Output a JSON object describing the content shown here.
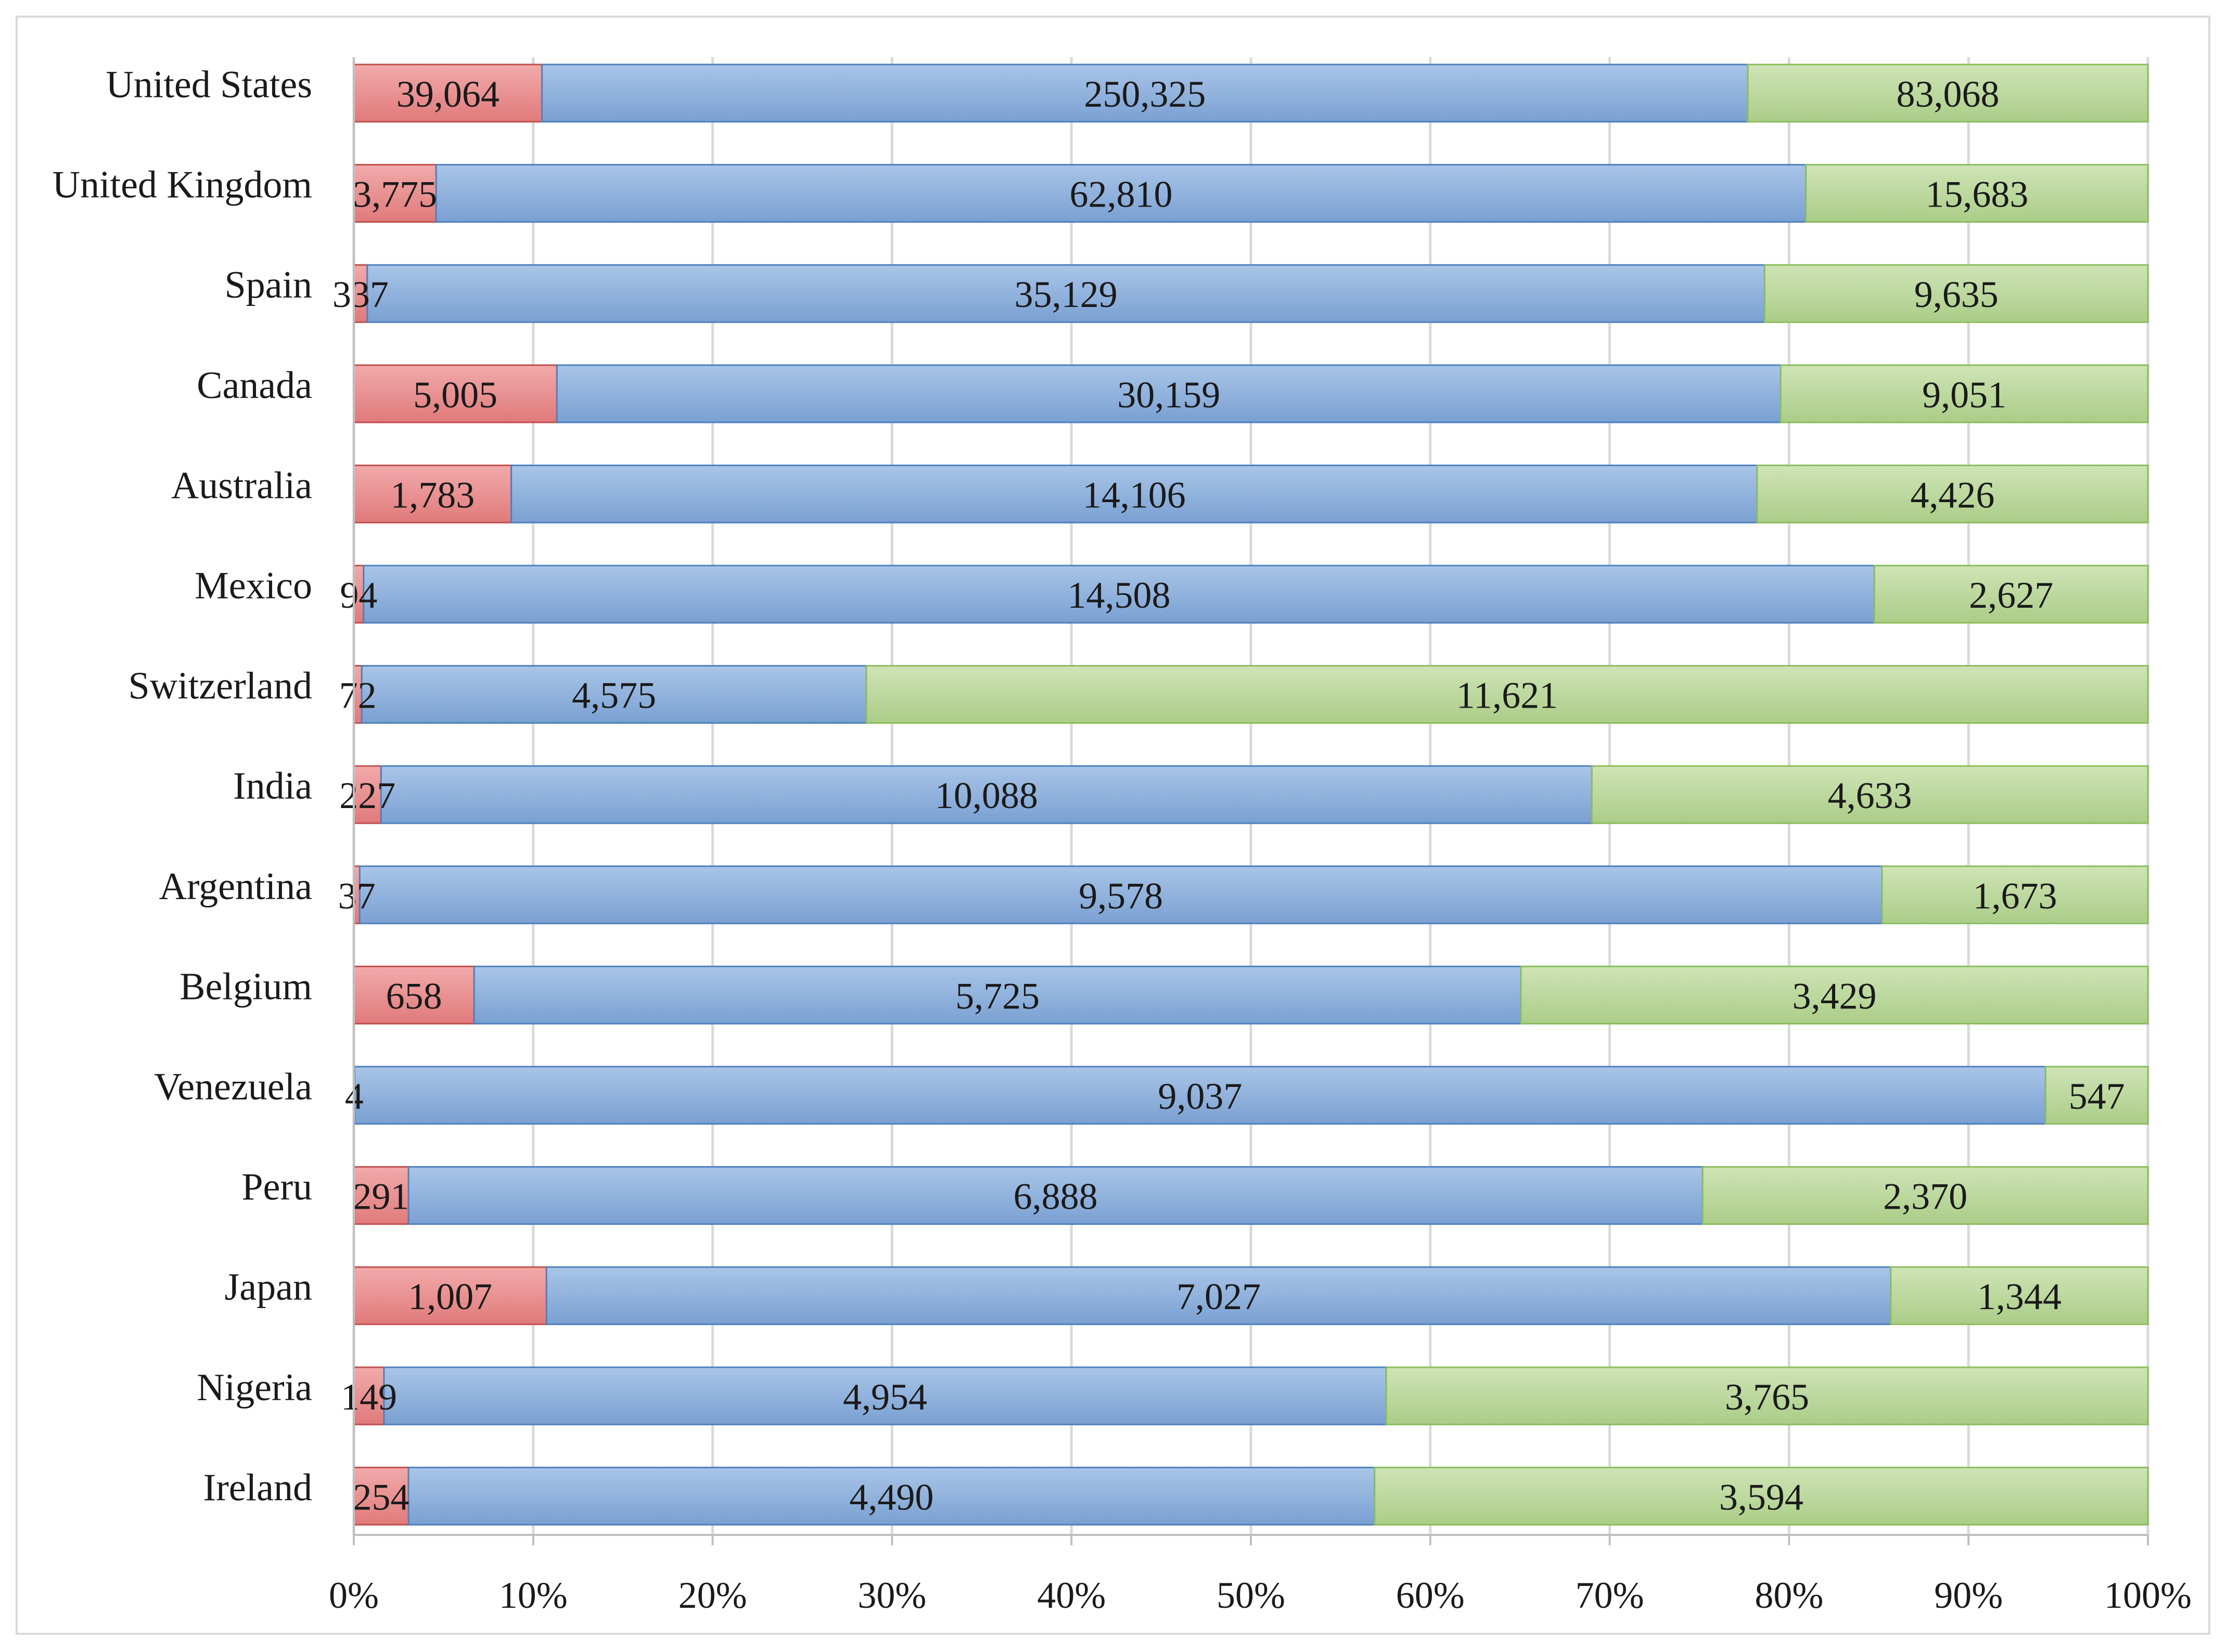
{
  "chart_data": {
    "type": "bar",
    "orientation": "horizontal",
    "stacked": "percent",
    "title": "",
    "xlabel": "",
    "ylabel": "",
    "xlim": [
      0,
      100
    ],
    "x_ticks": [
      "0%",
      "10%",
      "20%",
      "30%",
      "40%",
      "50%",
      "60%",
      "70%",
      "80%",
      "90%",
      "100%"
    ],
    "grid": "vertical",
    "legend": "none",
    "categories": [
      "United States",
      "United Kingdom",
      "Spain",
      "Canada",
      "Australia",
      "Mexico",
      "Switzerland",
      "India",
      "Argentina",
      "Belgium",
      "Venezuela",
      "Peru",
      "Japan",
      "Nigeria",
      "Ireland"
    ],
    "series": [
      {
        "color": "#e8898a",
        "values": [
          39064,
          3775,
          337,
          5005,
          1783,
          94,
          72,
          227,
          37,
          658,
          4,
          291,
          1007,
          149,
          254
        ],
        "labels": [
          "39,064",
          "3,775",
          "337",
          "5,005",
          "1,783",
          "94",
          "72",
          "227",
          "37",
          "658",
          "4",
          "291",
          "1,007",
          "149",
          "254"
        ]
      },
      {
        "color": "#8fb1dc",
        "values": [
          250325,
          62810,
          35129,
          30159,
          14106,
          14508,
          4575,
          10088,
          9578,
          5725,
          9037,
          6888,
          7027,
          4954,
          4490
        ],
        "labels": [
          "250,325",
          "62,810",
          "35,129",
          "30,159",
          "14,106",
          "14,508",
          "4,575",
          "10,088",
          "9,578",
          "5,725",
          "9,037",
          "6,888",
          "7,027",
          "4,954",
          "4,490"
        ]
      },
      {
        "color": "#b9d69a",
        "values": [
          83068,
          15683,
          9635,
          9051,
          4426,
          2627,
          11621,
          4633,
          1673,
          3429,
          547,
          2370,
          1344,
          3765,
          3594
        ],
        "labels": [
          "83,068",
          "15,683",
          "9,635",
          "9,051",
          "4,426",
          "2,627",
          "11,621",
          "4,633",
          "1,673",
          "3,429",
          "547",
          "2,370",
          "1,344",
          "3,765",
          "3,594"
        ]
      }
    ]
  }
}
